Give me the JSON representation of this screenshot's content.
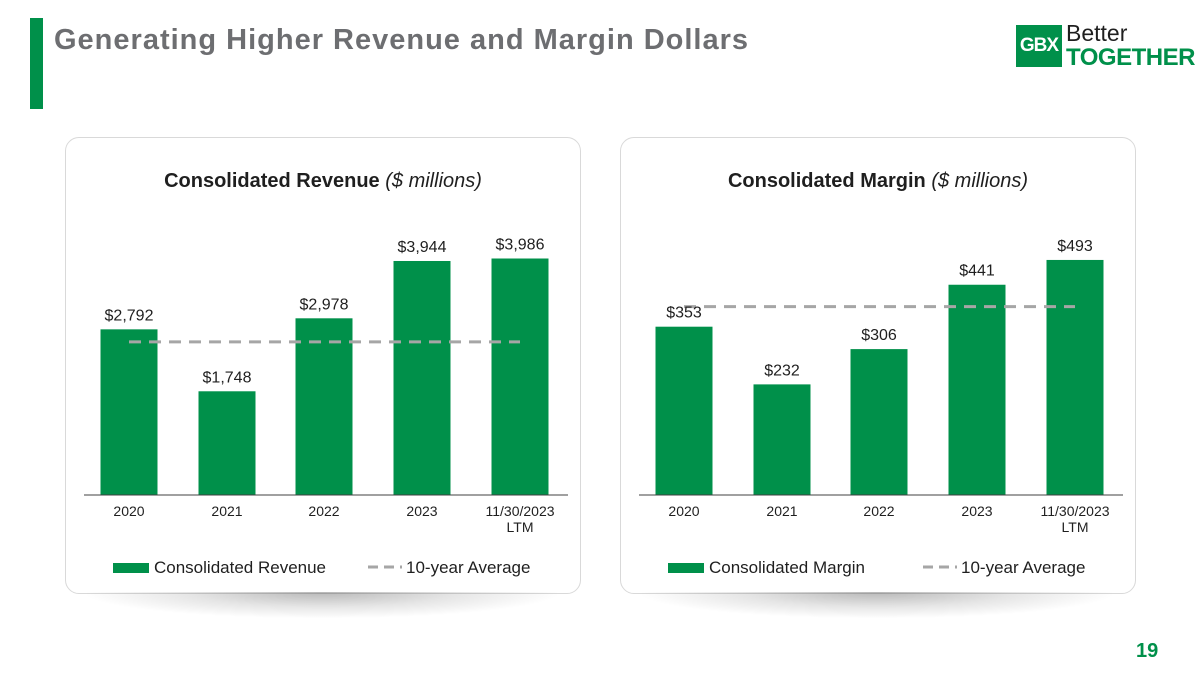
{
  "slide": {
    "title": "Generating Higher Revenue and Margin Dollars",
    "page_number": "19",
    "logo": {
      "mark": "GBX",
      "line1": "Better",
      "line2": "TOGETHER"
    },
    "colors": {
      "accent": "#00904A",
      "title": "#6d6e71",
      "average_line": "#a6a6a6"
    }
  },
  "chart_data": [
    {
      "type": "bar",
      "title": "Consolidated Revenue",
      "title_unit": "($ millions)",
      "categories": [
        "2020",
        "2021",
        "2022",
        "2023",
        "11/30/2023\nLTM"
      ],
      "series": [
        {
          "name": "Consolidated Revenue",
          "values": [
            2792,
            1748,
            2978,
            3944,
            3986
          ],
          "labels": [
            "$2,792",
            "$1,748",
            "$2,978",
            "$3,944",
            "$3,986"
          ]
        }
      ],
      "average": {
        "name": "10-year Average",
        "value": 2580
      },
      "ylim": [
        0,
        4500
      ],
      "legend": "bottom"
    },
    {
      "type": "bar",
      "title": "Consolidated Margin",
      "title_unit": "($ millions)",
      "categories": [
        "2020",
        "2021",
        "2022",
        "2023",
        "11/30/2023\nLTM"
      ],
      "series": [
        {
          "name": "Consolidated Margin",
          "values": [
            353,
            232,
            306,
            441,
            493
          ],
          "labels": [
            "$353",
            "$232",
            "$306",
            "$441",
            "$493"
          ]
        }
      ],
      "average": {
        "name": "10-year Average",
        "value": 395
      },
      "ylim": [
        0,
        560
      ],
      "legend": "bottom"
    }
  ]
}
